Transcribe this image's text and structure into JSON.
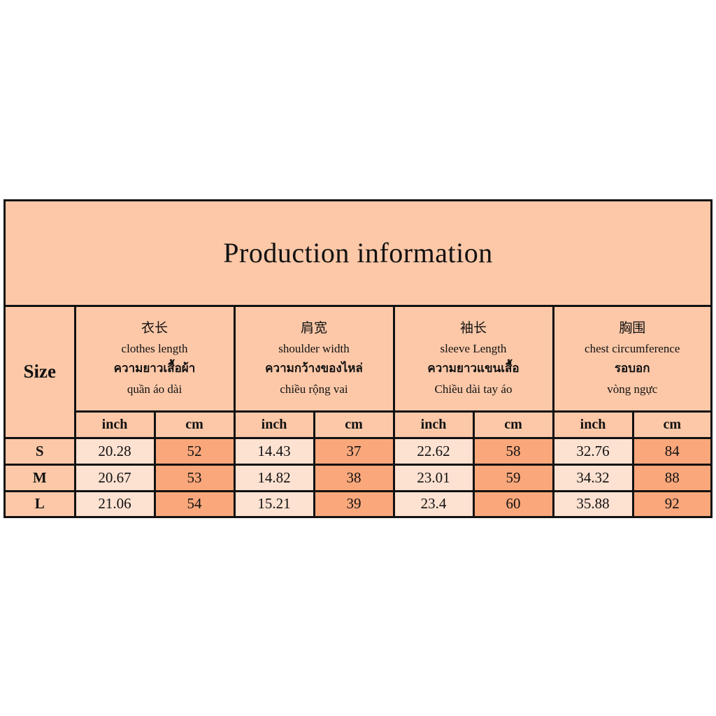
{
  "header": {
    "title": "Production information",
    "size_label": "Size"
  },
  "columns": [
    {
      "zh": "衣长",
      "en": "clothes length",
      "th": "ความยาวเสื้อผ้า",
      "vi": "quần áo dài"
    },
    {
      "zh": "肩宽",
      "en": "shoulder width",
      "th": "ความกว้างของไหล่",
      "vi": "chiều rộng vai"
    },
    {
      "zh": "袖长",
      "en": "sleeve Length",
      "th": "ความยาวแขนเสื้อ",
      "vi": "Chiều dài tay áo"
    },
    {
      "zh": "胸围",
      "en": "chest circumference",
      "th": "รอบอก",
      "vi": "vòng ngực"
    }
  ],
  "units": [
    "inch",
    "cm"
  ],
  "rows": [
    {
      "size": "S",
      "values": [
        20.28,
        52,
        14.43,
        37,
        22.62,
        58,
        32.76,
        84
      ]
    },
    {
      "size": "M",
      "values": [
        20.67,
        53,
        14.82,
        38,
        23.01,
        59,
        34.32,
        88
      ]
    },
    {
      "size": "L",
      "values": [
        21.06,
        54,
        15.21,
        39,
        23.4,
        60,
        35.88,
        92
      ]
    }
  ]
}
